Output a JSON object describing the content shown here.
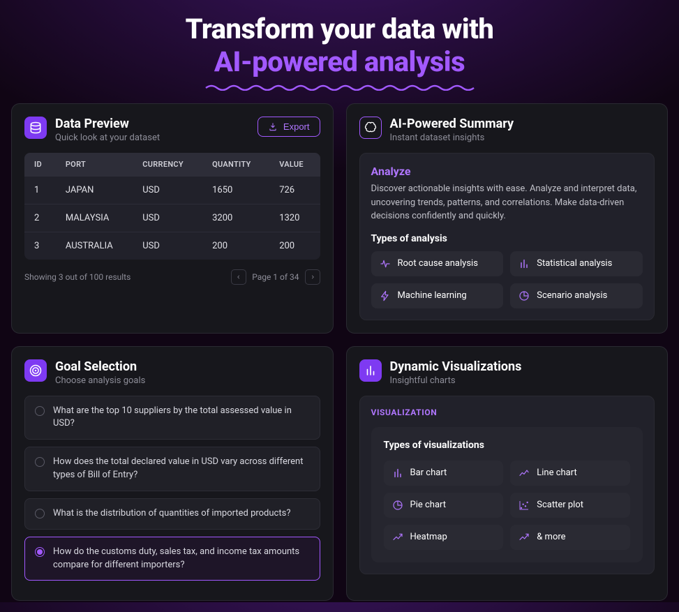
{
  "hero": {
    "line1": "Transform your data with",
    "line2": "AI-powered analysis",
    "accent_color": "#a259ff",
    "text_color": "#ffffff",
    "fontsize": 40
  },
  "preview": {
    "title": "Data Preview",
    "subtitle": "Quick look at your dataset",
    "icon": "database-icon",
    "export_label": "Export",
    "table": {
      "columns": [
        "ID",
        "PORT",
        "CURRENCY",
        "QUANTITY",
        "VALUE"
      ],
      "rows": [
        [
          "1",
          "JAPAN",
          "USD",
          "1650",
          "726"
        ],
        [
          "2",
          "MALAYSIA",
          "USD",
          "3200",
          "1320"
        ],
        [
          "3",
          "AUSTRALIA",
          "USD",
          "200",
          "200"
        ]
      ],
      "header_bg": "#2d2d38",
      "row_border": "#2d2d38"
    },
    "results_text": "Showing 3 out of 100 results",
    "page_text": "Page 1 of 34"
  },
  "summary": {
    "title": "AI-Powered Summary",
    "subtitle": "Instant dataset insights",
    "icon": "brain-icon",
    "analyze_heading": "Analyze",
    "analyze_body": "Discover actionable insights with ease. Analyze and interpret data, uncovering trends, patterns, and correlations. Make data-driven decisions confidently and quickly.",
    "types_heading": "Types of analysis",
    "types": [
      {
        "label": "Root cause analysis",
        "icon": "pulse-icon"
      },
      {
        "label": "Statistical analysis",
        "icon": "bars-icon"
      },
      {
        "label": "Machine learning",
        "icon": "bolt-icon"
      },
      {
        "label": "Scenario analysis",
        "icon": "pie-icon"
      }
    ]
  },
  "goals": {
    "title": "Goal Selection",
    "subtitle": "Choose analysis goals",
    "icon": "target-icon",
    "items": [
      {
        "text": "What are the top 10 suppliers by the total assessed value in USD?",
        "selected": false
      },
      {
        "text": "How does the total declared value in USD vary across different types of Bill of Entry?",
        "selected": false
      },
      {
        "text": "What is the distribution of quantities of imported products?",
        "selected": false
      },
      {
        "text": "How do the customs duty, sales tax, and income tax amounts compare for different importers?",
        "selected": true
      }
    ]
  },
  "viz": {
    "title": "Dynamic Visualizations",
    "subtitle": "Insightful charts",
    "icon": "bars-icon",
    "section_label": "VISUALIZATION",
    "types_heading": "Types of visualizations",
    "types": [
      {
        "label": "Bar chart",
        "icon": "bars-icon"
      },
      {
        "label": "Line chart",
        "icon": "line-icon"
      },
      {
        "label": "Pie chart",
        "icon": "pie-icon"
      },
      {
        "label": "Scatter plot",
        "icon": "scatter-icon"
      },
      {
        "label": "Heatmap",
        "icon": "trend-icon"
      },
      {
        "label": "& more",
        "icon": "trend-icon"
      }
    ]
  },
  "colors": {
    "background_grad_top": "#3a1460",
    "background_grad_bottom": "#100514",
    "card_bg": "#17171c",
    "card_border": "#2a2a32",
    "sub_bg": "#21212a",
    "chip_bg": "#2a2a33",
    "text": "#ffffff",
    "muted": "#8d8d98",
    "accent": "#a259ff",
    "accent_soft": "#b076ff",
    "accent_bright": "#7e3af2"
  }
}
